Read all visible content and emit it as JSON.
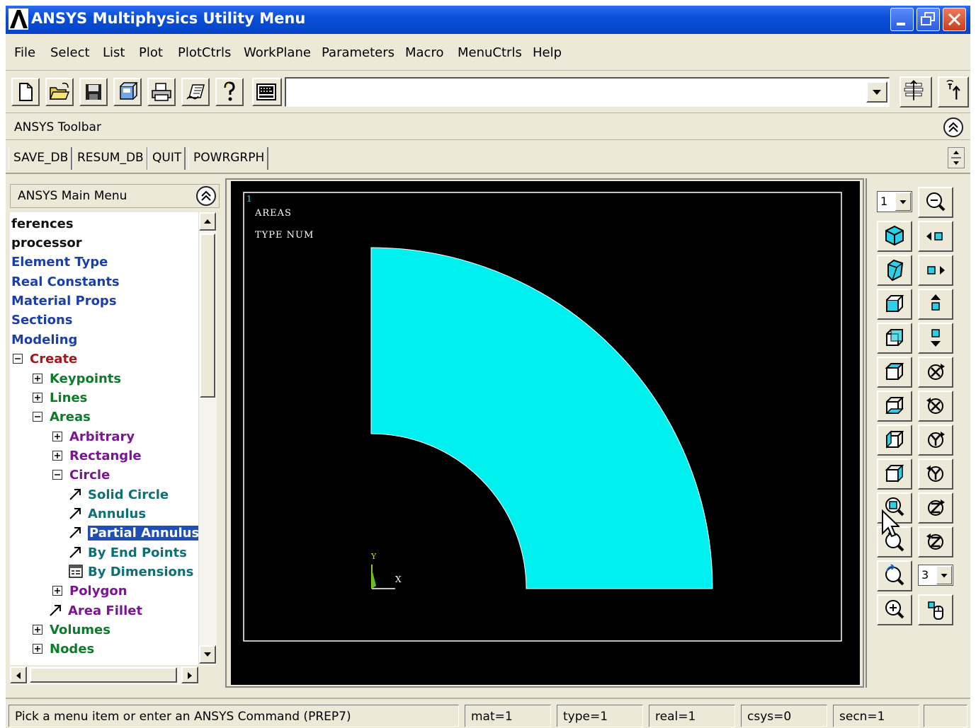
{
  "window": {
    "title": "ANSYS Multiphysics Utility Menu",
    "title_bar_color": "#0a4fd8"
  },
  "menubar": {
    "items": [
      "File",
      "Select",
      "List",
      "Plot",
      "PlotCtrls",
      "WorkPlane",
      "Parameters",
      "Macro",
      "MenuCtrls",
      "Help"
    ]
  },
  "toolbar": {
    "icons": [
      "new-file-icon",
      "open-folder-icon",
      "save-icon",
      "save-view-icon",
      "print-icon",
      "report-icon",
      "help-icon",
      "keyboard-icon"
    ],
    "command_input": ""
  },
  "ansys_toolbar": {
    "title": "ANSYS Toolbar",
    "buttons": [
      "SAVE_DB",
      "RESUM_DB",
      "QUIT",
      "POWRGRPH"
    ]
  },
  "main_menu": {
    "title": "ANSYS Main Menu",
    "tree": [
      {
        "label": "ferences"
      },
      {
        "label": "processor"
      },
      {
        "label": "Element Type"
      },
      {
        "label": "Real Constants"
      },
      {
        "label": "Material Props"
      },
      {
        "label": "Sections"
      },
      {
        "label": "Modeling"
      },
      {
        "label": "Create"
      },
      {
        "label": "Keypoints"
      },
      {
        "label": "Lines"
      },
      {
        "label": "Areas"
      },
      {
        "label": "Arbitrary"
      },
      {
        "label": "Rectangle"
      },
      {
        "label": "Circle"
      },
      {
        "label": "Solid Circle"
      },
      {
        "label": "Annulus"
      },
      {
        "label": "Partial Annulus",
        "selected": true
      },
      {
        "label": "By End Points"
      },
      {
        "label": "By Dimensions"
      },
      {
        "label": "Polygon"
      },
      {
        "label": "Area Fillet"
      },
      {
        "label": "Volumes"
      },
      {
        "label": "Nodes"
      }
    ]
  },
  "graphics": {
    "window_number": "1",
    "plot_title": "AREAS",
    "numbering": "TYPE NUM",
    "triad_y": "Y",
    "triad_x": "X",
    "background_color": "#000000",
    "area_color": "#00f0f0"
  },
  "palette": {
    "window_select": "1",
    "view_select": "3",
    "icons": [
      "zoom-out-icon",
      "isometric-view-icon",
      "rotate-left-icon",
      "oblique-view-icon",
      "rotate-right-icon",
      "front-view-icon",
      "move-up-icon",
      "back-view-icon",
      "move-down-icon",
      "top-view-icon",
      "rotate-x-cw-icon",
      "bottom-view-icon",
      "rotate-x-ccw-icon",
      "left-view-icon",
      "rotate-y-cw-icon",
      "right-view-icon",
      "rotate-y-ccw-icon",
      "zoom-box-icon",
      "rotate-z-cw-icon",
      "zoom-back-icon",
      "rotate-z-ccw-icon",
      "zoom-fit-icon",
      "zoom-in-icon",
      "dynamic-mode-icon"
    ]
  },
  "status": {
    "prompt": "Pick a menu item or enter an ANSYS Command (PREP7)",
    "mat": "mat=1",
    "type": "type=1",
    "real": "real=1",
    "csys": "csys=0",
    "secn": "secn=1",
    "extra": ""
  }
}
